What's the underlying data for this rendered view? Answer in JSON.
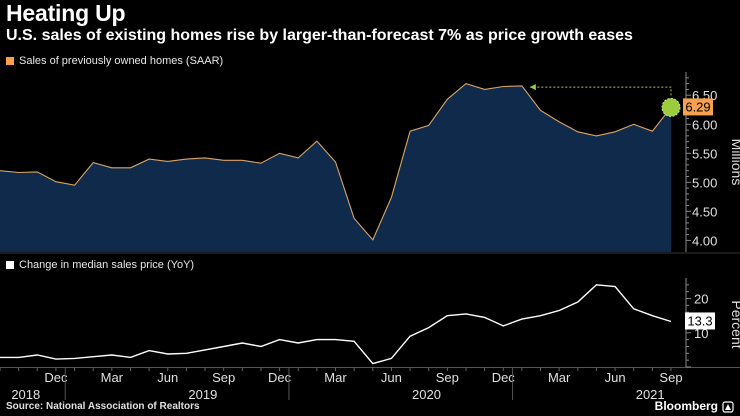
{
  "title": "Heating Up",
  "subtitle": "U.S. sales of existing homes rise by larger-than-forecast 7% as price growth eases",
  "source": "Source: National Association of Realtors",
  "brand": "Bloomberg",
  "colors": {
    "background": "#000000",
    "area_fill": "#0f2a4a",
    "area_line": "#d9a46a",
    "highlight": "#f5a14e",
    "marker": "#9ccc3c",
    "line2": "#ffffff",
    "axis_text": "#e0e0e0",
    "grid": "#444444"
  },
  "chart_data": [
    {
      "type": "area",
      "legend": "Sales of previously owned homes (SAAR)",
      "ylabel": "Millions",
      "ylim": [
        3.8,
        6.9
      ],
      "yticks": [
        "4.00",
        "4.50",
        "5.00",
        "5.50",
        "6.00",
        "6.50"
      ],
      "ytick_values": [
        4.0,
        4.5,
        5.0,
        5.5,
        6.0,
        6.5
      ],
      "last_value_label": "6.29",
      "annotation": "arrow pointing back to earlier peak",
      "x": [
        "2018-09",
        "2018-10",
        "2018-11",
        "2018-12",
        "2019-01",
        "2019-02",
        "2019-03",
        "2019-04",
        "2019-05",
        "2019-06",
        "2019-07",
        "2019-08",
        "2019-09",
        "2019-10",
        "2019-11",
        "2019-12",
        "2020-01",
        "2020-02",
        "2020-03",
        "2020-04",
        "2020-05",
        "2020-06",
        "2020-07",
        "2020-08",
        "2020-09",
        "2020-10",
        "2020-11",
        "2020-12",
        "2021-01",
        "2021-02",
        "2021-03",
        "2021-04",
        "2021-05",
        "2021-06",
        "2021-07",
        "2021-08",
        "2021-09"
      ],
      "values": [
        5.2,
        5.17,
        5.18,
        5.01,
        4.95,
        5.34,
        5.25,
        5.25,
        5.4,
        5.36,
        5.4,
        5.42,
        5.38,
        5.38,
        5.33,
        5.5,
        5.42,
        5.71,
        5.35,
        4.38,
        4.01,
        4.74,
        5.88,
        5.98,
        6.43,
        6.7,
        6.6,
        6.65,
        6.66,
        6.24,
        6.04,
        5.87,
        5.8,
        5.87,
        6.0,
        5.88,
        6.29
      ]
    },
    {
      "type": "line",
      "legend": "Change in median sales price (YoY)",
      "ylabel": "Percent",
      "ylim": [
        0,
        26
      ],
      "yticks": [
        "10",
        "20"
      ],
      "ytick_values": [
        10,
        20
      ],
      "last_value_label": "13.3",
      "x": [
        "2018-09",
        "2018-10",
        "2018-11",
        "2018-12",
        "2019-01",
        "2019-02",
        "2019-03",
        "2019-04",
        "2019-05",
        "2019-06",
        "2019-07",
        "2019-08",
        "2019-09",
        "2019-10",
        "2019-11",
        "2019-12",
        "2020-01",
        "2020-02",
        "2020-03",
        "2020-04",
        "2020-05",
        "2020-06",
        "2020-07",
        "2020-08",
        "2020-09",
        "2020-10",
        "2020-11",
        "2020-12",
        "2021-01",
        "2021-02",
        "2021-03",
        "2021-04",
        "2021-05",
        "2021-06",
        "2021-07",
        "2021-08",
        "2021-09"
      ],
      "values": [
        2.8,
        2.8,
        3.5,
        2.3,
        2.5,
        3.0,
        3.5,
        2.8,
        4.8,
        3.8,
        4.0,
        5.0,
        6.0,
        7.0,
        6.0,
        8.0,
        7.0,
        8.0,
        8.0,
        7.5,
        1.0,
        2.5,
        9.0,
        11.5,
        15.0,
        15.5,
        14.5,
        12.0,
        14.0,
        15.0,
        16.5,
        19.0,
        24.0,
        23.5,
        17.0,
        15.0,
        13.3
      ]
    }
  ],
  "x_axis": {
    "months": [
      {
        "label": "Dec",
        "index": 3
      },
      {
        "label": "Mar",
        "index": 6
      },
      {
        "label": "Jun",
        "index": 9
      },
      {
        "label": "Sep",
        "index": 12
      },
      {
        "label": "Dec",
        "index": 15
      },
      {
        "label": "Mar",
        "index": 18
      },
      {
        "label": "Jun",
        "index": 21
      },
      {
        "label": "Sep",
        "index": 24
      },
      {
        "label": "Dec",
        "index": 27
      },
      {
        "label": "Mar",
        "index": 30
      },
      {
        "label": "Jun",
        "index": 33
      },
      {
        "label": "Sep",
        "index": 36
      }
    ],
    "years": [
      {
        "label": "2018",
        "index": 0.5
      },
      {
        "label": "2019",
        "index": 10.0
      },
      {
        "label": "2020",
        "index": 22.0
      },
      {
        "label": "2021",
        "index": 34.0
      }
    ]
  }
}
